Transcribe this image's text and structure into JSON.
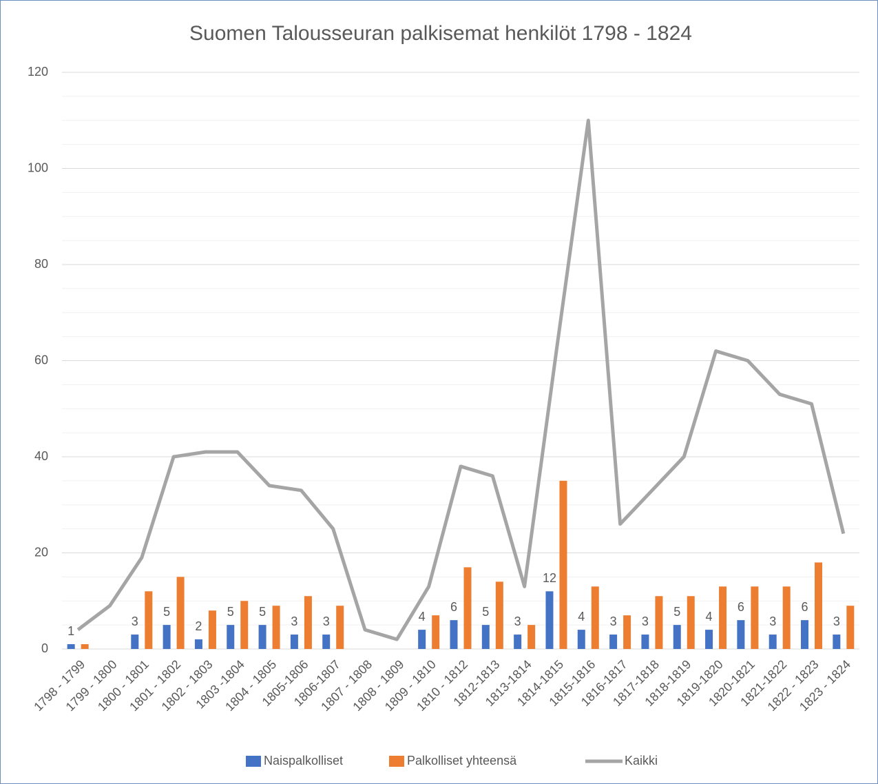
{
  "chart_data": {
    "type": "bar_line",
    "title": "Suomen Talousseuran palkisemat henkilöt 1798 - 1824",
    "categories": [
      "1798 - 1799",
      "1799 - 1800",
      "1800 - 1801",
      "1801 - 1802",
      "1802 - 1803",
      "1803 -1804",
      "1804 - 1805",
      "1805-1806",
      "1806-1807",
      "1807 - 1808",
      "1808 - 1809",
      "1809 - 1810",
      "1810 - 1812",
      "1812-1813",
      "1813-1814",
      "1814-1815",
      "1815-1816",
      "1816-1817",
      "1817-1818",
      "1818-1819",
      "1819-1820",
      "1820-1821",
      "1821-1822",
      "1822 - 1823",
      "1823 - 1824"
    ],
    "series": [
      {
        "name": "Naispalkolliset",
        "type": "bar",
        "color": "#4472c4",
        "data_labels": true,
        "values": [
          1,
          null,
          3,
          5,
          2,
          5,
          5,
          3,
          3,
          null,
          null,
          4,
          6,
          5,
          3,
          12,
          4,
          3,
          3,
          5,
          4,
          6,
          3,
          6,
          3
        ]
      },
      {
        "name": "Palkolliset yhteensä",
        "type": "bar",
        "color": "#ed7d31",
        "values": [
          1,
          null,
          12,
          15,
          8,
          10,
          9,
          11,
          9,
          null,
          null,
          7,
          17,
          14,
          5,
          35,
          13,
          7,
          11,
          11,
          13,
          13,
          13,
          18,
          9
        ]
      },
      {
        "name": "Kaikki",
        "type": "line",
        "color": "#a5a5a5",
        "values": [
          4,
          9,
          19,
          40,
          41,
          41,
          34,
          33,
          25,
          4,
          2,
          13,
          38,
          36,
          13,
          62,
          110,
          26,
          33,
          40,
          62,
          60,
          53,
          51,
          24
        ]
      }
    ],
    "ylim": [
      0,
      120
    ],
    "yticks": [
      0,
      20,
      40,
      60,
      80,
      100,
      120
    ],
    "minor_yticks": [
      5,
      10,
      15,
      25,
      30,
      35,
      45,
      50,
      55,
      65,
      70,
      75,
      85,
      90,
      95,
      105,
      110,
      115
    ],
    "grid": true,
    "legend": "bottom"
  }
}
